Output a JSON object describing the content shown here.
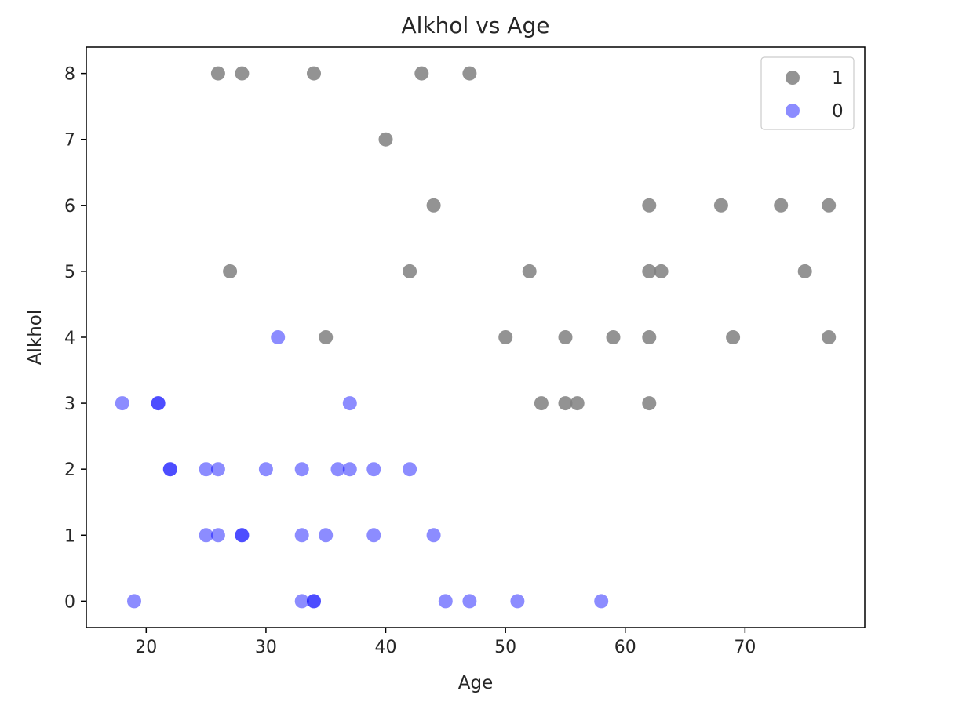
{
  "chart_data": {
    "type": "scatter",
    "title": "Alkhol vs Age",
    "xlabel": "Age",
    "ylabel": "Alkhol",
    "xlim": [
      15,
      80
    ],
    "ylim": [
      -0.4,
      8.4
    ],
    "xticks": [
      "20",
      "30",
      "40",
      "50",
      "60",
      "70"
    ],
    "yticks": [
      "0",
      "1",
      "2",
      "3",
      "4",
      "5",
      "6",
      "7",
      "8"
    ],
    "grid": false,
    "legend_position": "top-right",
    "series": [
      {
        "name": "1",
        "color": "#808080",
        "points": [
          [
            26,
            8
          ],
          [
            28,
            8
          ],
          [
            34,
            8
          ],
          [
            43,
            8
          ],
          [
            47,
            8
          ],
          [
            40,
            7
          ],
          [
            44,
            6
          ],
          [
            62,
            6
          ],
          [
            68,
            6
          ],
          [
            73,
            6
          ],
          [
            77,
            6
          ],
          [
            27,
            5
          ],
          [
            42,
            5
          ],
          [
            52,
            5
          ],
          [
            62,
            5
          ],
          [
            63,
            5
          ],
          [
            75,
            5
          ],
          [
            35,
            4
          ],
          [
            50,
            4
          ],
          [
            55,
            4
          ],
          [
            59,
            4
          ],
          [
            62,
            4
          ],
          [
            69,
            4
          ],
          [
            77,
            4
          ],
          [
            53,
            3
          ],
          [
            55,
            3
          ],
          [
            56,
            3
          ],
          [
            62,
            3
          ]
        ]
      },
      {
        "name": "0",
        "color": "#0000ff",
        "points": [
          [
            31,
            4
          ],
          [
            18,
            3
          ],
          [
            21,
            3
          ],
          [
            21,
            3
          ],
          [
            37,
            3
          ],
          [
            22,
            2
          ],
          [
            22,
            2
          ],
          [
            25,
            2
          ],
          [
            26,
            2
          ],
          [
            30,
            2
          ],
          [
            33,
            2
          ],
          [
            36,
            2
          ],
          [
            37,
            2
          ],
          [
            39,
            2
          ],
          [
            42,
            2
          ],
          [
            25,
            1
          ],
          [
            26,
            1
          ],
          [
            28,
            1
          ],
          [
            28,
            1
          ],
          [
            33,
            1
          ],
          [
            35,
            1
          ],
          [
            39,
            1
          ],
          [
            44,
            1
          ],
          [
            19,
            0
          ],
          [
            33,
            0
          ],
          [
            34,
            0
          ],
          [
            34,
            0
          ],
          [
            45,
            0
          ],
          [
            47,
            0
          ],
          [
            51,
            0
          ],
          [
            58,
            0
          ]
        ]
      }
    ]
  }
}
